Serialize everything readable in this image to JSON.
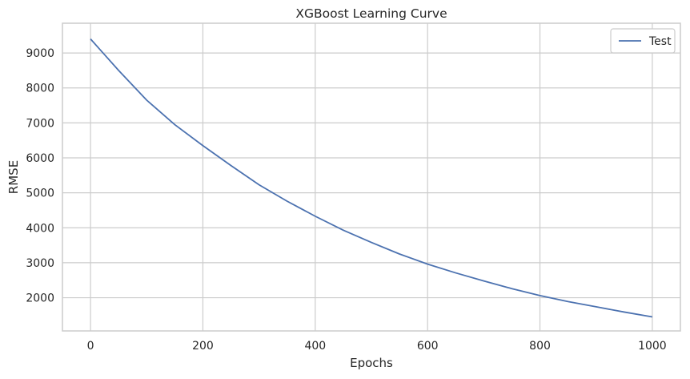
{
  "chart_data": {
    "type": "line",
    "title": "XGBoost Learning Curve",
    "xlabel": "Epochs",
    "ylabel": "RMSE",
    "xlim": [
      -50,
      1050
    ],
    "ylim": [
      1050,
      9850
    ],
    "xticks": [
      0,
      200,
      400,
      600,
      800,
      1000
    ],
    "yticks": [
      2000,
      3000,
      4000,
      5000,
      6000,
      7000,
      8000,
      9000
    ],
    "grid": true,
    "legend_position": "top-right",
    "series": [
      {
        "name": "Test",
        "color": "#4c72b0",
        "x": [
          0,
          50,
          100,
          150,
          200,
          250,
          300,
          350,
          400,
          450,
          500,
          550,
          600,
          650,
          700,
          750,
          800,
          850,
          900,
          950,
          1000
        ],
        "y": [
          9400,
          8500,
          7650,
          6950,
          6350,
          5780,
          5230,
          4760,
          4330,
          3930,
          3580,
          3250,
          2960,
          2710,
          2480,
          2260,
          2060,
          1890,
          1740,
          1590,
          1450
        ]
      }
    ]
  }
}
